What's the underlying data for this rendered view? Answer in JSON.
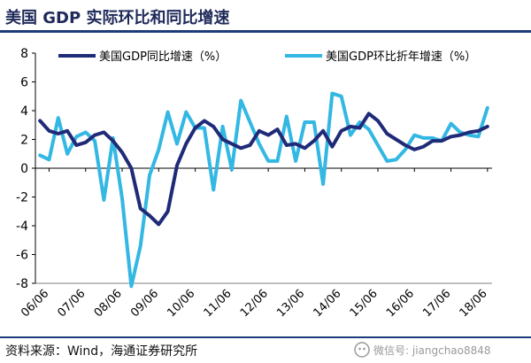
{
  "page": {
    "title": "美国 GDP 实际环比和同比增速",
    "source": "资料来源：Wind，海通证券研究所",
    "watermark": "微信号: jiangchao8848"
  },
  "colors": {
    "yoy": "#1f2a78",
    "qoq": "#33b7e3",
    "rule": "#1f3c7a",
    "axis": "#000000"
  },
  "chart_data": {
    "type": "line",
    "title": "美国 GDP 实际环比和同比增速",
    "xlabel": "",
    "ylabel": "",
    "ylim": [
      -8,
      8
    ],
    "yticks": [
      -8,
      -6,
      -4,
      -2,
      0,
      2,
      4,
      6,
      8
    ],
    "x": [
      "2006Q1",
      "2006Q2",
      "2006Q3",
      "2006Q4",
      "2007Q1",
      "2007Q2",
      "2007Q3",
      "2007Q4",
      "2008Q1",
      "2008Q2",
      "2008Q3",
      "2008Q4",
      "2009Q1",
      "2009Q2",
      "2009Q3",
      "2009Q4",
      "2010Q1",
      "2010Q2",
      "2010Q3",
      "2010Q4",
      "2011Q1",
      "2011Q2",
      "2011Q3",
      "2011Q4",
      "2012Q1",
      "2012Q2",
      "2012Q3",
      "2012Q4",
      "2013Q1",
      "2013Q2",
      "2013Q3",
      "2013Q4",
      "2014Q1",
      "2014Q2",
      "2014Q3",
      "2014Q4",
      "2015Q1",
      "2015Q2",
      "2015Q3",
      "2015Q4",
      "2016Q1",
      "2016Q2",
      "2016Q3",
      "2016Q4",
      "2017Q1",
      "2017Q2",
      "2017Q3",
      "2017Q4",
      "2018Q1",
      "2018Q2"
    ],
    "tick_labels": [
      "06/06",
      "07/06",
      "08/06",
      "09/06",
      "10/06",
      "11/06",
      "12/06",
      "13/06",
      "14/06",
      "15/06",
      "16/06",
      "17/06",
      "18/06"
    ],
    "tick_positions": [
      1,
      5,
      9,
      13,
      17,
      21,
      25,
      29,
      33,
      37,
      41,
      45,
      49
    ],
    "legend_position": "top",
    "series": [
      {
        "name": "美国GDP同比增速（%）",
        "color": "#1f2a78",
        "values": [
          3.3,
          2.6,
          2.4,
          2.6,
          1.6,
          1.8,
          2.3,
          2.5,
          1.9,
          1.1,
          0.0,
          -2.8,
          -3.3,
          -3.9,
          -3.0,
          0.2,
          1.7,
          2.8,
          3.3,
          2.9,
          2.0,
          1.7,
          1.4,
          1.6,
          2.6,
          2.3,
          2.7,
          1.6,
          1.7,
          1.4,
          1.9,
          2.6,
          1.5,
          2.6,
          2.9,
          2.8,
          3.8,
          3.3,
          2.4,
          2.0,
          1.6,
          1.3,
          1.5,
          1.9,
          1.9,
          2.2,
          2.3,
          2.5,
          2.6,
          2.9
        ]
      },
      {
        "name": "美国GDP环比折年增速（%）",
        "color": "#33b7e3",
        "values": [
          0.9,
          0.6,
          3.5,
          1.0,
          2.2,
          2.5,
          1.9,
          -2.2,
          2.1,
          -2.1,
          -8.2,
          -5.4,
          -0.5,
          1.3,
          3.9,
          1.7,
          3.9,
          2.8,
          2.8,
          -1.5,
          2.9,
          -0.1,
          4.7,
          3.2,
          1.7,
          0.5,
          0.5,
          3.6,
          0.5,
          3.2,
          3.2,
          -1.1,
          5.2,
          5.0,
          2.3,
          3.2,
          2.7,
          1.6,
          0.5,
          0.6,
          1.3,
          2.3,
          2.1,
          2.1,
          1.9,
          3.1,
          2.5,
          2.3,
          2.2,
          4.2
        ]
      }
    ]
  }
}
